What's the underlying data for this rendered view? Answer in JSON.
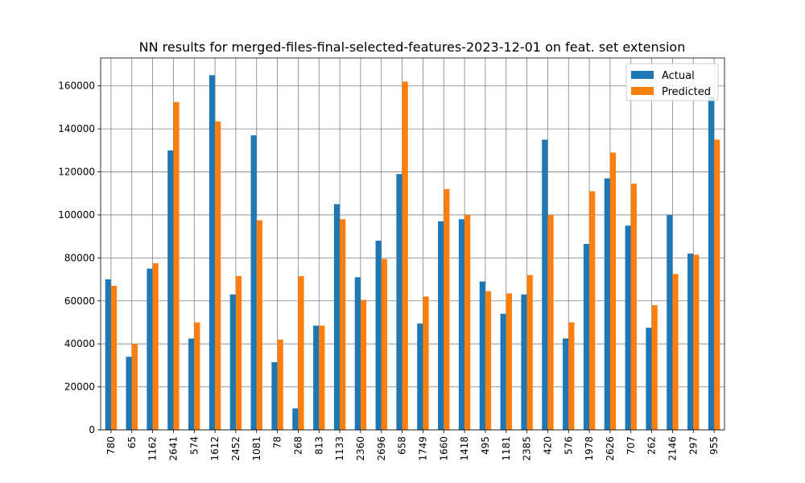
{
  "chart_data": {
    "type": "bar",
    "title": "NN results for merged-files-final-selected-features-2023-12-01 on feat. set extension",
    "xlabel": "",
    "ylabel": "",
    "ylim": [
      0,
      173000
    ],
    "yticks": [
      0,
      20000,
      40000,
      60000,
      80000,
      100000,
      120000,
      140000,
      160000
    ],
    "grid": true,
    "legend_position": "top-right",
    "categories": [
      "780",
      "65",
      "1162",
      "2641",
      "574",
      "1612",
      "2452",
      "1081",
      "78",
      "268",
      "813",
      "1133",
      "2360",
      "2696",
      "658",
      "1749",
      "1660",
      "1418",
      "495",
      "1181",
      "2385",
      "420",
      "576",
      "1978",
      "2626",
      "707",
      "262",
      "2146",
      "297",
      "955"
    ],
    "series": [
      {
        "name": "Actual",
        "color": "#1f77b4",
        "values": [
          70000,
          34000,
          75000,
          130000,
          42500,
          165000,
          63000,
          137000,
          31500,
          10000,
          48500,
          105000,
          71000,
          88000,
          119000,
          49500,
          97000,
          98000,
          69000,
          54000,
          63000,
          135000,
          42500,
          86500,
          117000,
          95000,
          47500,
          100000,
          82000,
          155000
        ]
      },
      {
        "name": "Predicted",
        "color": "#ff7f0e",
        "values": [
          67000,
          40000,
          77500,
          152500,
          50000,
          143500,
          71500,
          97500,
          42000,
          71500,
          48500,
          98000,
          60500,
          79500,
          162000,
          62000,
          112000,
          100000,
          64500,
          63500,
          72000,
          100000,
          50000,
          111000,
          129000,
          114500,
          58000,
          72500,
          81500,
          135000
        ]
      }
    ]
  }
}
